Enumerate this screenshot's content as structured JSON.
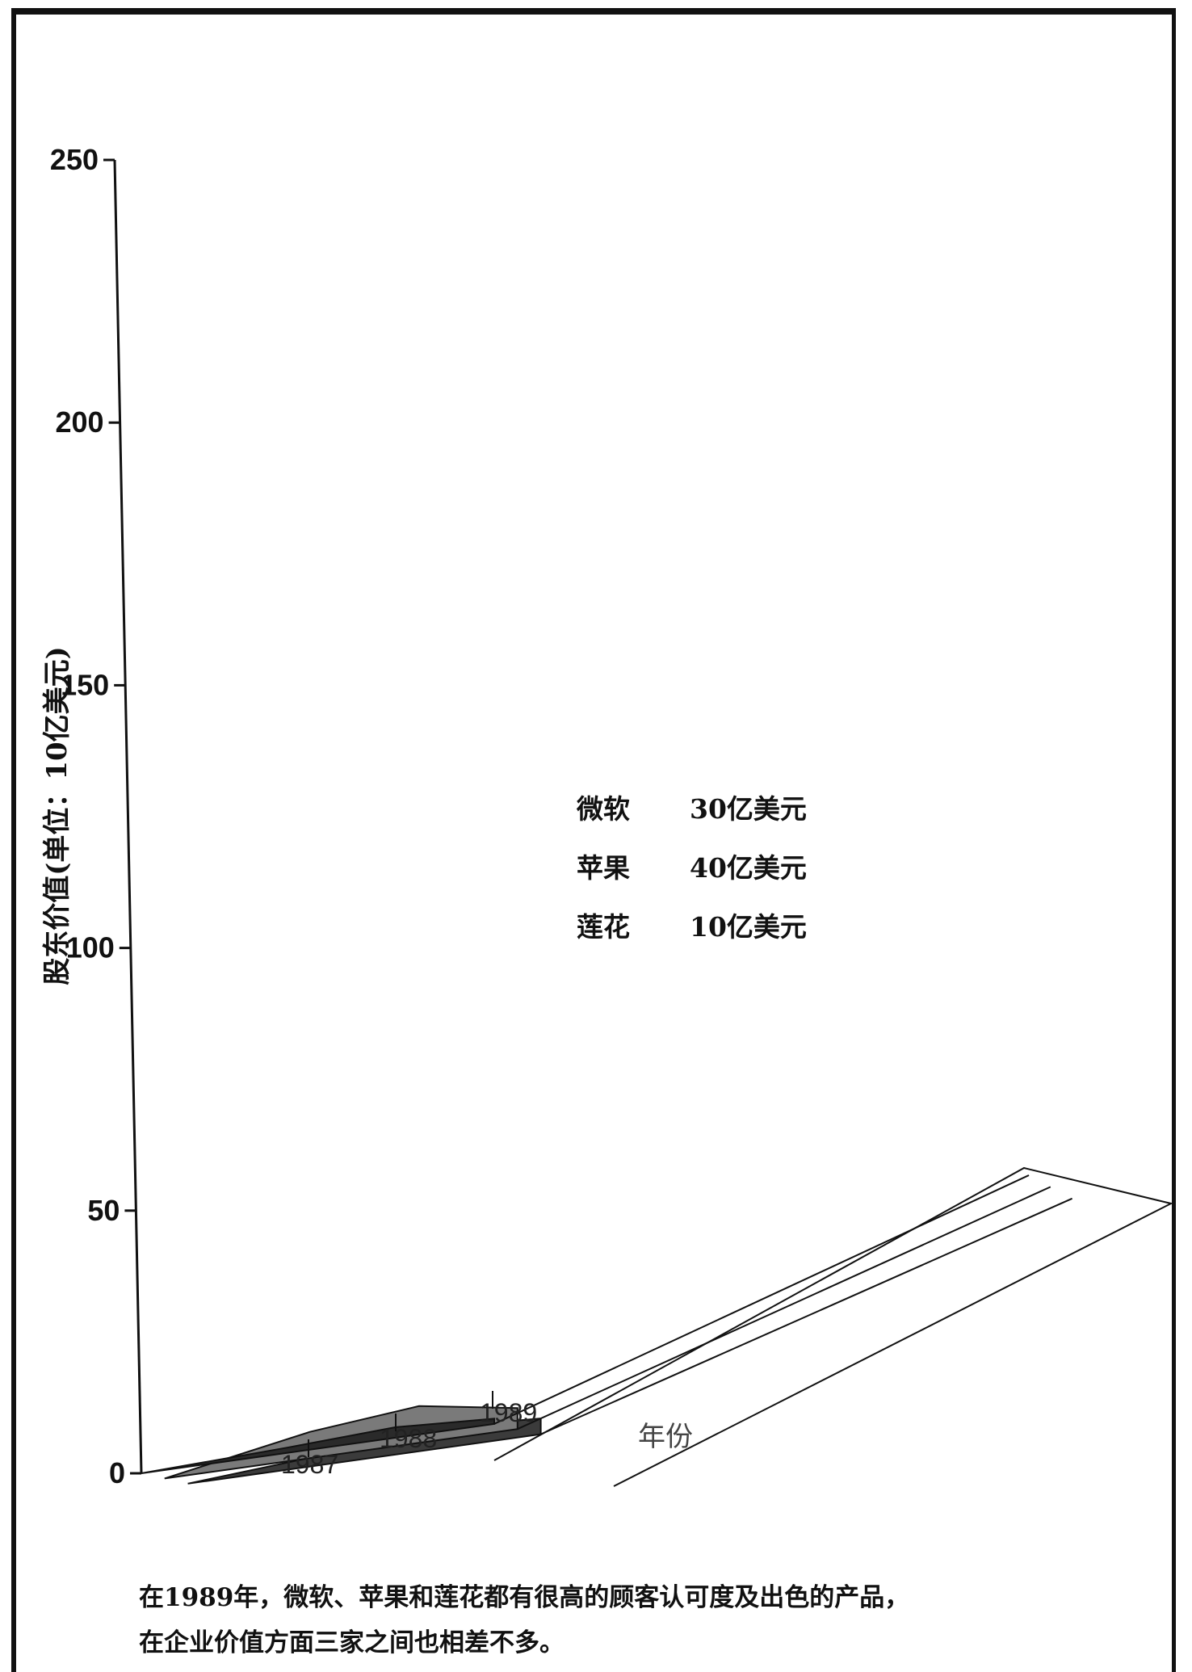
{
  "chart_data": {
    "type": "area",
    "ylabel": "股东价值(单位：10亿美元)",
    "xlabel": "年份",
    "ylim": [
      0,
      250
    ],
    "yticks": [
      "0",
      "50",
      "100",
      "150",
      "200",
      "250"
    ],
    "categories": [
      "1987",
      "1988",
      "1989"
    ],
    "series": [
      {
        "name": "微软",
        "values": [
          2,
          4,
          3
        ]
      },
      {
        "name": "苹果",
        "values": [
          5,
          7,
          4
        ]
      },
      {
        "name": "莲花",
        "values": [
          1,
          2,
          1
        ]
      }
    ],
    "legend": [
      {
        "name": "微软",
        "value": "30亿美元"
      },
      {
        "name": "苹果",
        "value": "40亿美元"
      },
      {
        "name": "莲花",
        "value": "10亿美元"
      }
    ],
    "legend_position": "center",
    "grid": false
  },
  "caption": {
    "line1": "在1989年，微软、苹果和莲花都有很高的顾客认可度及出色的产品，",
    "line2": "在企业价值方面三家之间也相差不多。"
  },
  "colors": {
    "ink": "#111111",
    "band_dark": "#2a2a2a",
    "band_mid": "#6a6a6a"
  }
}
